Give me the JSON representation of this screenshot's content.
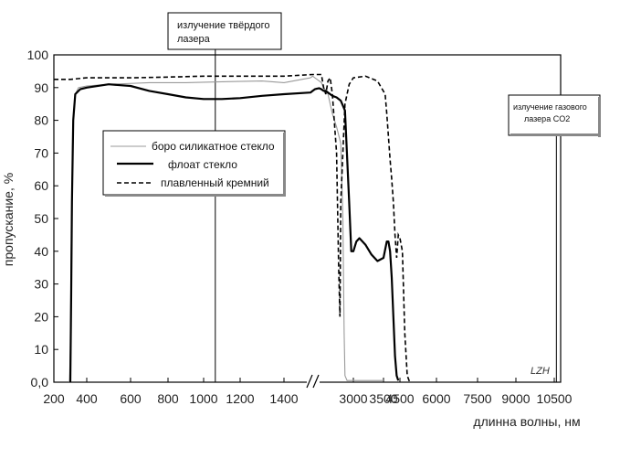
{
  "chart_data": {
    "type": "line",
    "title": "",
    "xlabel": "длинна волны, нм",
    "ylabel": "пропускание, %",
    "ylim": [
      0,
      100
    ],
    "y_ticks": [
      "0,0",
      "10",
      "20",
      "30",
      "40",
      "50",
      "60",
      "70",
      "80",
      "90",
      "100"
    ],
    "x_tick_labels": [
      "200",
      "400",
      "600",
      "800",
      "1000",
      "1200",
      "1400",
      "3000",
      "3500",
      "4500",
      "6000",
      "7500",
      "9000",
      "10500"
    ],
    "x_axis_break": "between 1400 and 3000 (broken axis)",
    "grid": false,
    "legend_placement": "upper-left",
    "series": [
      {
        "name": "боро силикатное стекло",
        "style": "thin-gray",
        "points": [
          [
            295,
            0
          ],
          [
            300,
            10
          ],
          [
            305,
            40
          ],
          [
            315,
            78
          ],
          [
            330,
            88
          ],
          [
            350,
            90
          ],
          [
            400,
            90.5
          ],
          [
            500,
            91
          ],
          [
            700,
            91.5
          ],
          [
            900,
            91.5
          ],
          [
            1100,
            91.8
          ],
          [
            1300,
            92
          ],
          [
            1400,
            91.5
          ],
          [
            1500,
            93
          ],
          [
            1600,
            93.5
          ],
          [
            1700,
            93
          ],
          [
            1800,
            92.5
          ],
          [
            1900,
            92
          ],
          [
            2000,
            91.5
          ],
          [
            2100,
            90
          ],
          [
            2200,
            89
          ],
          [
            2300,
            88
          ],
          [
            2400,
            85
          ],
          [
            2500,
            82
          ],
          [
            2600,
            78
          ],
          [
            2700,
            73
          ],
          [
            2750,
            50
          ],
          [
            2780,
            15
          ],
          [
            2800,
            2
          ],
          [
            2850,
            0.5
          ],
          [
            3500,
            0.5
          ]
        ]
      },
      {
        "name": "флоат стекло",
        "style": "thick-black",
        "points": [
          [
            300,
            0
          ],
          [
            305,
            25
          ],
          [
            310,
            55
          ],
          [
            318,
            80
          ],
          [
            330,
            88
          ],
          [
            360,
            89.5
          ],
          [
            400,
            90
          ],
          [
            500,
            91
          ],
          [
            600,
            90.5
          ],
          [
            700,
            89
          ],
          [
            800,
            88
          ],
          [
            900,
            87
          ],
          [
            1000,
            86.5
          ],
          [
            1100,
            86.5
          ],
          [
            1200,
            86.8
          ],
          [
            1300,
            87.5
          ],
          [
            1400,
            88
          ],
          [
            1500,
            88.5
          ],
          [
            1600,
            89
          ],
          [
            1700,
            89.5
          ],
          [
            1800,
            89.7
          ],
          [
            1900,
            89.8
          ],
          [
            2000,
            89.5
          ],
          [
            2100,
            89
          ],
          [
            2200,
            89
          ],
          [
            2300,
            88.5
          ],
          [
            2400,
            88
          ],
          [
            2500,
            87.5
          ],
          [
            2600,
            87
          ],
          [
            2700,
            86
          ],
          [
            2800,
            83
          ],
          [
            2900,
            55
          ],
          [
            2950,
            40
          ],
          [
            3000,
            40
          ],
          [
            3050,
            43
          ],
          [
            3100,
            44
          ],
          [
            3200,
            42
          ],
          [
            3300,
            39
          ],
          [
            3400,
            37
          ],
          [
            3500,
            38
          ],
          [
            3600,
            40.5
          ],
          [
            3700,
            43
          ],
          [
            3800,
            43
          ],
          [
            3900,
            40
          ],
          [
            4000,
            32
          ],
          [
            4100,
            20
          ],
          [
            4200,
            8
          ],
          [
            4300,
            2
          ],
          [
            4400,
            0.5
          ]
        ]
      },
      {
        "name": "плавленный кремний",
        "style": "dashed-black",
        "points": [
          [
            200,
            92.5
          ],
          [
            300,
            92.5
          ],
          [
            400,
            93
          ],
          [
            600,
            93
          ],
          [
            800,
            93.2
          ],
          [
            1000,
            93.5
          ],
          [
            1200,
            93.5
          ],
          [
            1400,
            93.5
          ],
          [
            1600,
            94
          ],
          [
            1800,
            94
          ],
          [
            2000,
            94
          ],
          [
            2100,
            90
          ],
          [
            2200,
            88
          ],
          [
            2300,
            92
          ],
          [
            2400,
            93
          ],
          [
            2500,
            88
          ],
          [
            2600,
            70
          ],
          [
            2650,
            35
          ],
          [
            2680,
            20
          ],
          [
            2700,
            55
          ],
          [
            2750,
            70
          ],
          [
            2800,
            85
          ],
          [
            2900,
            91
          ],
          [
            3000,
            93
          ],
          [
            3200,
            93.5
          ],
          [
            3400,
            92
          ],
          [
            3600,
            88
          ],
          [
            3700,
            82
          ],
          [
            3800,
            75
          ],
          [
            3900,
            68
          ],
          [
            4000,
            62
          ],
          [
            4100,
            55
          ],
          [
            4200,
            45
          ],
          [
            4300,
            38
          ],
          [
            4400,
            45
          ],
          [
            4500,
            44
          ],
          [
            4600,
            40
          ],
          [
            4700,
            15
          ],
          [
            4800,
            2
          ],
          [
            4900,
            0
          ]
        ]
      }
    ],
    "annotations": [
      {
        "kind": "vertical-line",
        "x": 1064,
        "text": [
          "излучение твёрдого",
          "лазера"
        ]
      },
      {
        "kind": "vertical-line",
        "x": 10600,
        "text": [
          "излучение газового",
          "лазера CO2"
        ]
      }
    ],
    "brand_mark": "LZH"
  }
}
